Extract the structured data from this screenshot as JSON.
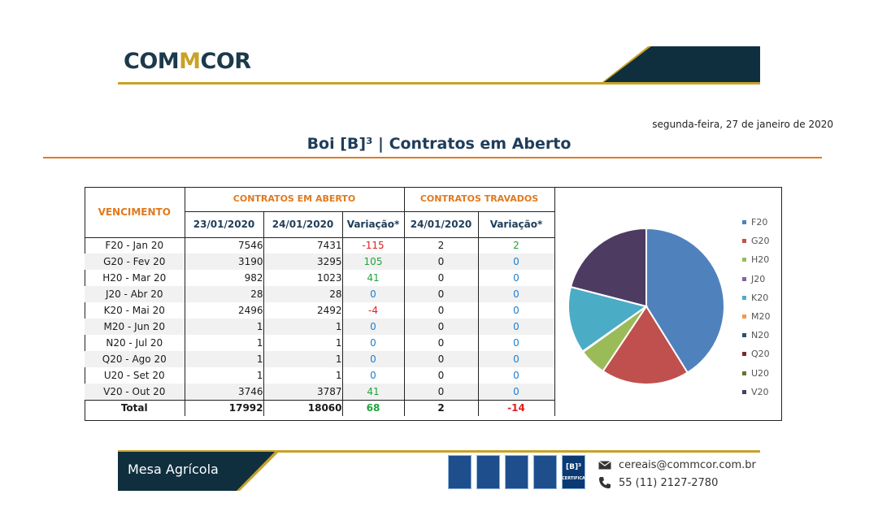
{
  "header": {
    "logo_part1": "COM",
    "logo_mark": "M",
    "logo_part2": "COR",
    "date": "segunda-feira, 27 de janeiro de 2020",
    "title": "Boi [B]³ | Contratos em Aberto"
  },
  "table": {
    "h_vencimento": "VENCIMENTO",
    "h_group_aberto": "CONTRATOS EM ABERTO",
    "h_group_travados": "CONTRATOS TRAVADOS",
    "h_date1": "23/01/2020",
    "h_date2": "24/01/2020",
    "h_var1": "Variação*",
    "h_date3": "24/01/2020",
    "h_var2": "Variação*",
    "rows": [
      {
        "venc": "F20 - Jan 20",
        "d1": "7546",
        "d2": "7431",
        "v1": "-115",
        "d3": "2",
        "v2": "2"
      },
      {
        "venc": "G20 - Fev 20",
        "d1": "3190",
        "d2": "3295",
        "v1": "105",
        "d3": "0",
        "v2": "0"
      },
      {
        "venc": "H20 - Mar 20",
        "d1": "982",
        "d2": "1023",
        "v1": "41",
        "d3": "0",
        "v2": "0"
      },
      {
        "venc": "J20 - Abr 20",
        "d1": "28",
        "d2": "28",
        "v1": "0",
        "d3": "0",
        "v2": "0"
      },
      {
        "venc": "K20 - Mai 20",
        "d1": "2496",
        "d2": "2492",
        "v1": "-4",
        "d3": "0",
        "v2": "0"
      },
      {
        "venc": "M20 - Jun 20",
        "d1": "1",
        "d2": "1",
        "v1": "0",
        "d3": "0",
        "v2": "0"
      },
      {
        "venc": "N20 - Jul 20",
        "d1": "1",
        "d2": "1",
        "v1": "0",
        "d3": "0",
        "v2": "0"
      },
      {
        "venc": "Q20 - Ago 20",
        "d1": "1",
        "d2": "1",
        "v1": "0",
        "d3": "0",
        "v2": "0"
      },
      {
        "venc": "U20 - Set 20",
        "d1": "1",
        "d2": "1",
        "v1": "0",
        "d3": "0",
        "v2": "0"
      },
      {
        "venc": "V20 - Out 20",
        "d1": "3746",
        "d2": "3787",
        "v1": "41",
        "d3": "0",
        "v2": "0"
      }
    ],
    "total": {
      "venc": "Total",
      "d1": "17992",
      "d2": "18060",
      "v1": "68",
      "d3": "2",
      "v2": "-14"
    }
  },
  "chart_data": {
    "type": "pie",
    "title": "",
    "legend_position": "right",
    "categories": [
      "F20",
      "G20",
      "H20",
      "J20",
      "K20",
      "M20",
      "N20",
      "Q20",
      "U20",
      "V20"
    ],
    "values": [
      7431,
      3295,
      1023,
      28,
      2492,
      1,
      1,
      1,
      1,
      3787
    ],
    "colors": [
      "#4f81bd",
      "#c0504d",
      "#9bbb59",
      "#8064a2",
      "#4bacc6",
      "#f79646",
      "#2c4d75",
      "#772c2a",
      "#5f7530",
      "#4d3b62"
    ]
  },
  "colors": {
    "navy": "#1b3a4b",
    "gold": "#c9a227",
    "orange": "#e07a1f",
    "negative": "#e02020",
    "positive": "#1fa43a",
    "zero": "#1f7fd0"
  },
  "footer": {
    "label": "Mesa Agrícola",
    "email": "cereais@commcor.com.br",
    "phone": "55 (11) 2127-2780",
    "b3_badge": "[B]³",
    "b3_badge_caption": "CERTIFICA"
  }
}
